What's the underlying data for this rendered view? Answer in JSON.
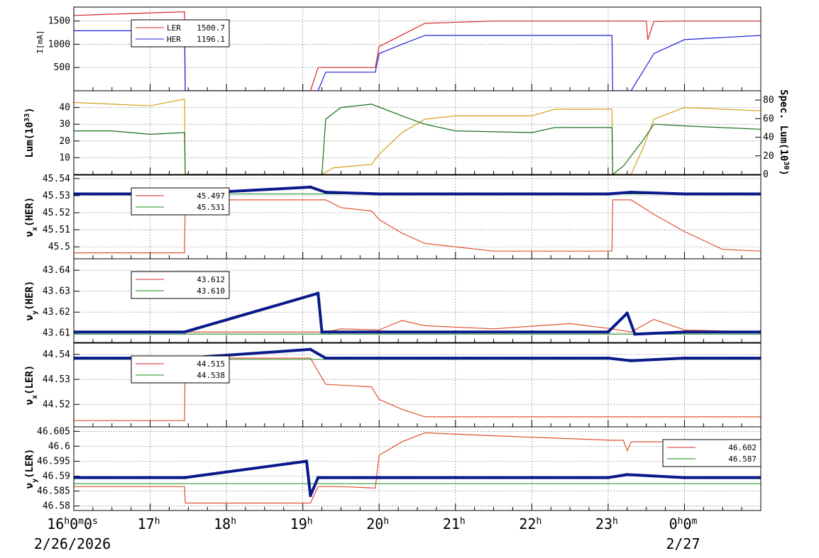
{
  "chart_data": [
    {
      "id": "current",
      "type": "line",
      "ylabel_main": "I",
      "ylabel_unit": "[mA]",
      "ylim": [
        0,
        1800
      ],
      "yticks": [
        500,
        1000,
        1500
      ],
      "grid": true,
      "legend": {
        "position": "top-left",
        "entries": [
          {
            "name": "LER",
            "value": "1500.7",
            "color": "#d62728"
          },
          {
            "name": "HER",
            "value": "1196.1",
            "color": "#1f1fd6"
          }
        ]
      },
      "series": [
        {
          "name": "LER",
          "color": "#d62728",
          "x": [
            0,
            1.45,
            1.46,
            3.1,
            3.2,
            3.95,
            4.0,
            4.3,
            4.6,
            5.5,
            6.2,
            7.0,
            7.5,
            7.52,
            7.6,
            8.0,
            9.0
          ],
          "y": [
            1620,
            1700,
            0,
            0,
            500,
            500,
            950,
            1200,
            1450,
            1500,
            1500,
            1500,
            1500,
            1100,
            1490,
            1500,
            1500
          ]
        },
        {
          "name": "HER",
          "color": "#1f1fd6",
          "x": [
            0,
            1.45,
            1.46,
            3.2,
            3.3,
            3.95,
            4.0,
            4.3,
            4.6,
            5.5,
            7.05,
            7.06,
            7.3,
            7.45,
            7.6,
            8.0,
            9.0
          ],
          "y": [
            1290,
            1290,
            0,
            0,
            400,
            400,
            800,
            1000,
            1190,
            1190,
            1190,
            0,
            0,
            400,
            800,
            1100,
            1190
          ]
        }
      ]
    },
    {
      "id": "luminosity",
      "type": "line",
      "ylabel_main": "Lum(10",
      "ylabel_exp": "33",
      "ylabel_tail": ")",
      "ylabel_right_main": "Spec. Lum(10",
      "ylabel_right_exp": "30",
      "ylabel_right_tail": ")",
      "ylim": [
        0,
        50
      ],
      "yticks": [
        10,
        20,
        30,
        40
      ],
      "y2lim": [
        0,
        90
      ],
      "y2ticks": [
        0,
        20,
        40,
        60,
        80
      ],
      "grid": true,
      "series": [
        {
          "name": "Lum",
          "color": "#d4a017",
          "x": [
            0,
            0.5,
            1.0,
            1.45,
            1.46,
            3.25,
            3.4,
            3.9,
            4.0,
            4.3,
            4.6,
            5.0,
            6.0,
            6.3,
            7.0,
            7.05,
            7.06,
            7.3,
            7.45,
            7.6,
            8.0,
            9.0
          ],
          "y": [
            43,
            42,
            41,
            45,
            0,
            0,
            4,
            6,
            12,
            25,
            33,
            35,
            35,
            39,
            39,
            39,
            0,
            0,
            15,
            33,
            40,
            38
          ]
        },
        {
          "name": "Spec",
          "color": "#1a6e1a",
          "x": [
            0,
            0.5,
            1.0,
            1.45,
            1.46,
            3.25,
            3.3,
            3.5,
            3.9,
            4.3,
            4.6,
            5.0,
            6.0,
            6.3,
            7.0,
            7.05,
            7.06,
            7.2,
            7.45,
            7.6,
            8.0,
            9.0
          ],
          "y": [
            26,
            26,
            24,
            25,
            0,
            0,
            33,
            40,
            42,
            35,
            30,
            26,
            25,
            28,
            28,
            28,
            0,
            5,
            20,
            30,
            29,
            27
          ]
        }
      ]
    },
    {
      "id": "nux_her",
      "type": "line",
      "ylabel_main": "ν",
      "ylabel_sub": "x",
      "ylabel_tail": "(HER)",
      "ylim": [
        45.493,
        45.542
      ],
      "yticks": [
        45.5,
        45.51,
        45.52,
        45.53,
        45.54
      ],
      "ytick_labels": [
        "45.5",
        "45.51",
        "45.52",
        "45.53",
        "45.54"
      ],
      "grid": true,
      "legend": {
        "position": "top-left",
        "entries": [
          {
            "name": "",
            "value": "45.497",
            "color": "#d62728"
          },
          {
            "name": "",
            "value": "45.531",
            "color": "#1a8a1a"
          }
        ]
      },
      "series": [
        {
          "name": "set",
          "color": "#e05030",
          "x": [
            0,
            1.45,
            1.46,
            3.3,
            3.5,
            3.9,
            4.0,
            4.3,
            4.6,
            5.5,
            7.05,
            7.06,
            7.3,
            7.6,
            8.0,
            8.5,
            9.0
          ],
          "y": [
            45.4965,
            45.4965,
            45.5275,
            45.5275,
            45.523,
            45.521,
            45.516,
            45.508,
            45.502,
            45.4975,
            45.4975,
            45.5275,
            45.5275,
            45.519,
            45.509,
            45.4985,
            45.4975
          ]
        },
        {
          "name": "ref",
          "color": "#1a8a1a",
          "x": [
            0,
            9.0
          ],
          "y": [
            45.531,
            45.531
          ]
        },
        {
          "name": "meas",
          "color": "#0a1a8a",
          "dots": true,
          "x": [
            0,
            1.45,
            3.1,
            3.3,
            4.0,
            5.0,
            6.0,
            7.0,
            7.3,
            8.0,
            9.0
          ],
          "y": [
            45.531,
            45.531,
            45.535,
            45.532,
            45.531,
            45.531,
            45.531,
            45.531,
            45.532,
            45.531,
            45.531
          ]
        }
      ]
    },
    {
      "id": "nuy_her",
      "type": "line",
      "ylabel_main": "ν",
      "ylabel_sub": "y",
      "ylabel_tail": "(HER)",
      "ylim": [
        43.6055,
        43.6455
      ],
      "yticks": [
        43.61,
        43.62,
        43.63,
        43.64
      ],
      "ytick_labels": [
        "43.61",
        "43.62",
        "43.63",
        "43.64"
      ],
      "grid": true,
      "legend": {
        "position": "top-left",
        "entries": [
          {
            "name": "",
            "value": "43.612",
            "color": "#d62728"
          },
          {
            "name": "",
            "value": "43.610",
            "color": "#1a8a1a"
          }
        ]
      },
      "series": [
        {
          "name": "set",
          "color": "#e05030",
          "x": [
            0,
            1.45,
            3.3,
            3.5,
            4.0,
            4.3,
            4.6,
            5.5,
            6.5,
            7.05,
            7.3,
            7.6,
            8.0,
            9.0
          ],
          "y": [
            43.6105,
            43.6105,
            43.6105,
            43.612,
            43.6115,
            43.616,
            43.6135,
            43.612,
            43.6145,
            43.612,
            43.6105,
            43.6165,
            43.6115,
            43.6105
          ]
        },
        {
          "name": "ref",
          "color": "#1a8a1a",
          "x": [
            0,
            9.0
          ],
          "y": [
            43.6095,
            43.6095
          ]
        },
        {
          "name": "meas",
          "color": "#0a1a8a",
          "dots": true,
          "x": [
            0,
            1.45,
            3.2,
            3.25,
            3.35,
            4.0,
            5.0,
            6.0,
            7.0,
            7.25,
            7.35,
            8.0,
            9.0
          ],
          "y": [
            43.6105,
            43.6105,
            43.629,
            43.6105,
            43.6105,
            43.6105,
            43.6105,
            43.6105,
            43.6105,
            43.6195,
            43.6095,
            43.6105,
            43.6105
          ]
        }
      ]
    },
    {
      "id": "nux_ler",
      "type": "line",
      "ylabel_main": "ν",
      "ylabel_sub": "x",
      "ylabel_tail": "(LER)",
      "ylim": [
        44.511,
        44.5445
      ],
      "yticks": [
        44.52,
        44.53,
        44.54
      ],
      "ytick_labels": [
        "44.52",
        "44.53",
        "44.54"
      ],
      "grid": true,
      "legend": {
        "position": "top-left",
        "entries": [
          {
            "name": "",
            "value": "44.515",
            "color": "#d62728"
          },
          {
            "name": "",
            "value": "44.538",
            "color": "#1a8a1a"
          }
        ]
      },
      "series": [
        {
          "name": "set",
          "color": "#e05030",
          "x": [
            0,
            1.45,
            1.46,
            3.1,
            3.3,
            3.9,
            4.0,
            4.3,
            4.6,
            5.5,
            7.0,
            7.3,
            7.5,
            9.0
          ],
          "y": [
            44.5135,
            44.5135,
            44.5385,
            44.5385,
            44.528,
            44.527,
            44.522,
            44.518,
            44.515,
            44.515,
            44.515,
            44.515,
            44.515,
            44.515
          ]
        },
        {
          "name": "ref",
          "color": "#1a8a1a",
          "x": [
            0,
            9.0
          ],
          "y": [
            44.538,
            44.538
          ]
        },
        {
          "name": "meas",
          "color": "#0a1a8a",
          "dots": true,
          "x": [
            0,
            1.45,
            3.1,
            3.3,
            4.0,
            5.0,
            6.0,
            7.0,
            7.3,
            8.0,
            9.0
          ],
          "y": [
            44.5385,
            44.5385,
            44.542,
            44.5385,
            44.5385,
            44.5385,
            44.5385,
            44.5385,
            44.5375,
            44.5385,
            44.5385
          ]
        }
      ]
    },
    {
      "id": "nuy_ler",
      "type": "line",
      "ylabel_main": "ν",
      "ylabel_sub": "y",
      "ylabel_tail": "(LER)",
      "ylim": [
        46.5785,
        46.6065
      ],
      "yticks": [
        46.58,
        46.585,
        46.59,
        46.595,
        46.6,
        46.605
      ],
      "ytick_labels": [
        "46.58",
        "46.585",
        "46.59",
        "46.595",
        "46.6",
        "46.605"
      ],
      "grid": true,
      "legend": {
        "position": "top-right",
        "entries": [
          {
            "name": "",
            "value": "46.602",
            "color": "#d62728"
          },
          {
            "name": "",
            "value": "46.587",
            "color": "#1a8a1a"
          }
        ]
      },
      "series": [
        {
          "name": "set",
          "color": "#e05030",
          "x": [
            0,
            1.45,
            1.46,
            3.1,
            3.2,
            3.5,
            3.95,
            4.0,
            4.3,
            4.6,
            5.5,
            7.05,
            7.2,
            7.25,
            7.3,
            9.0
          ],
          "y": [
            46.5865,
            46.5865,
            46.581,
            46.581,
            46.5865,
            46.5865,
            46.586,
            46.597,
            46.6015,
            46.6045,
            46.6035,
            46.602,
            46.602,
            46.5985,
            46.6015,
            46.6015
          ]
        },
        {
          "name": "ref",
          "color": "#1a8a1a",
          "x": [
            0,
            9.0
          ],
          "y": [
            46.5875,
            46.5875
          ]
        },
        {
          "name": "meas",
          "color": "#0a1a8a",
          "dots": true,
          "x": [
            0,
            1.45,
            3.05,
            3.1,
            3.2,
            4.0,
            5.0,
            6.0,
            7.0,
            7.25,
            8.0,
            9.0
          ],
          "y": [
            46.5895,
            46.5895,
            46.595,
            46.5835,
            46.5895,
            46.5895,
            46.5895,
            46.5895,
            46.5895,
            46.5905,
            46.5895,
            46.5895
          ]
        }
      ]
    }
  ],
  "x_axis": {
    "xlim": [
      0,
      9.0
    ],
    "ticks": [
      {
        "x": 0,
        "main": "16",
        "sup1": "h",
        "mid1": "0",
        "sup2": "m",
        "mid2": "0",
        "sup3": "s"
      },
      {
        "x": 1,
        "main": "17",
        "sup1": "h"
      },
      {
        "x": 2,
        "main": "18",
        "sup1": "h"
      },
      {
        "x": 3,
        "main": "19",
        "sup1": "h"
      },
      {
        "x": 4,
        "main": "20",
        "sup1": "h"
      },
      {
        "x": 5,
        "main": "21",
        "sup1": "h"
      },
      {
        "x": 6,
        "main": "22",
        "sup1": "h"
      },
      {
        "x": 7,
        "main": "23",
        "sup1": "h"
      },
      {
        "x": 8,
        "main": "0",
        "sup1": "h",
        "mid1": "0",
        "sup2": "m"
      }
    ],
    "dates": [
      {
        "x": 0,
        "text": "2/26/2026"
      },
      {
        "x": 8,
        "text": "2/27"
      }
    ]
  }
}
